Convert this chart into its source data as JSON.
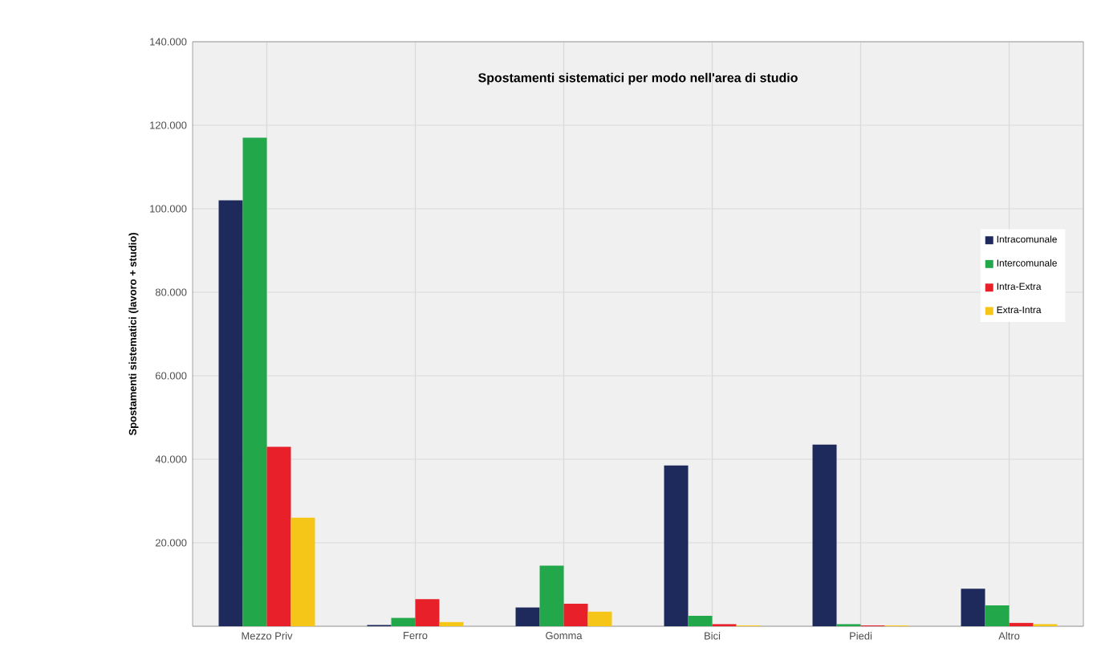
{
  "chart_data": {
    "type": "bar",
    "title": "Spostamenti sistematici per modo nell'area di studio",
    "ylabel": "Spostamenti sistematici (lavoro + studio)",
    "categories": [
      "Mezzo Priv",
      "Ferro",
      "Gomma",
      "Bici",
      "Piedi",
      "Altro"
    ],
    "series": [
      {
        "name": "Intracomunale",
        "color": "#1f2a5c",
        "values": [
          102000,
          300,
          4500,
          38500,
          43500,
          9000
        ]
      },
      {
        "name": "Intercomunale",
        "color": "#22a84a",
        "values": [
          117000,
          2000,
          14500,
          2500,
          500,
          5000
        ]
      },
      {
        "name": "Intra-Extra",
        "color": "#e8202a",
        "values": [
          43000,
          6500,
          5400,
          500,
          200,
          800
        ]
      },
      {
        "name": "Extra-Intra",
        "color": "#f5c518",
        "values": [
          26000,
          1000,
          3500,
          200,
          200,
          500
        ]
      }
    ],
    "ylim": [
      0,
      140000
    ],
    "yticks": [
      {
        "value": 0,
        "label": null
      },
      {
        "value": 20000,
        "label": "20.000"
      },
      {
        "value": 40000,
        "label": "40.000"
      },
      {
        "value": 60000,
        "label": "60.000"
      },
      {
        "value": 80000,
        "label": "80.000"
      },
      {
        "value": 100000,
        "label": "100.000"
      },
      {
        "value": 120000,
        "label": "120.000"
      },
      {
        "value": 140000,
        "label": "140.000"
      }
    ],
    "grid": true,
    "legend": "right"
  }
}
